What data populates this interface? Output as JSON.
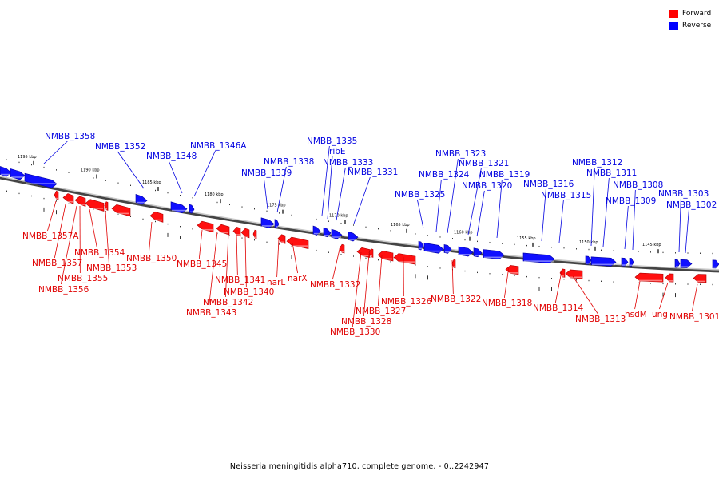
{
  "legend": {
    "forward_label": "Forward",
    "reverse_label": "Reverse",
    "forward_color": "#ff0000",
    "reverse_color": "#0000ff"
  },
  "caption": "Neisseria meningitidis alpha710, complete genome. - 0..2242947",
  "scale_ticks": [
    "1195 kbp",
    "1190 kbp",
    "1185 kbp",
    "1180 kbp",
    "1175 kbp",
    "1170 kbp",
    "1165 kbp",
    "1160 kbp",
    "1155 kbp",
    "1150 kbp",
    "1145 kbp"
  ],
  "reverse_genes": [
    "NMBB_1358",
    "NMBB_1352",
    "NMBB_1348",
    "NMBB_1346A",
    "NMBB_1339",
    "NMBB_1338",
    "NMBB_1335",
    "ribE",
    "NMBB_1333",
    "NMBB_1331",
    "NMBB_1325",
    "NMBB_1324",
    "NMBB_1323",
    "NMBB_1321",
    "NMBB_1320",
    "NMBB_1319",
    "NMBB_1316",
    "NMBB_1315",
    "NMBB_1312",
    "NMBB_1311",
    "NMBB_1309",
    "NMBB_1308",
    "NMBB_1303",
    "NMBB_1302"
  ],
  "forward_genes": [
    "NMBB_1357A",
    "NMBB_1357",
    "NMBB_1356",
    "NMBB_1355",
    "NMBB_1354",
    "NMBB_1353",
    "NMBB_1350",
    "NMBB_1345",
    "NMBB_1343",
    "NMBB_1342",
    "NMBB_1341",
    "NMBB_1340",
    "narL",
    "narX",
    "NMBB_1332",
    "NMBB_1330",
    "NMBB_1328",
    "NMBB_1327",
    "NMBB_1326",
    "NMBB_1322",
    "NMBB_1318",
    "NMBB_1314",
    "NMBB_1313",
    "hsdM",
    "ung",
    "NMBB_1301"
  ]
}
